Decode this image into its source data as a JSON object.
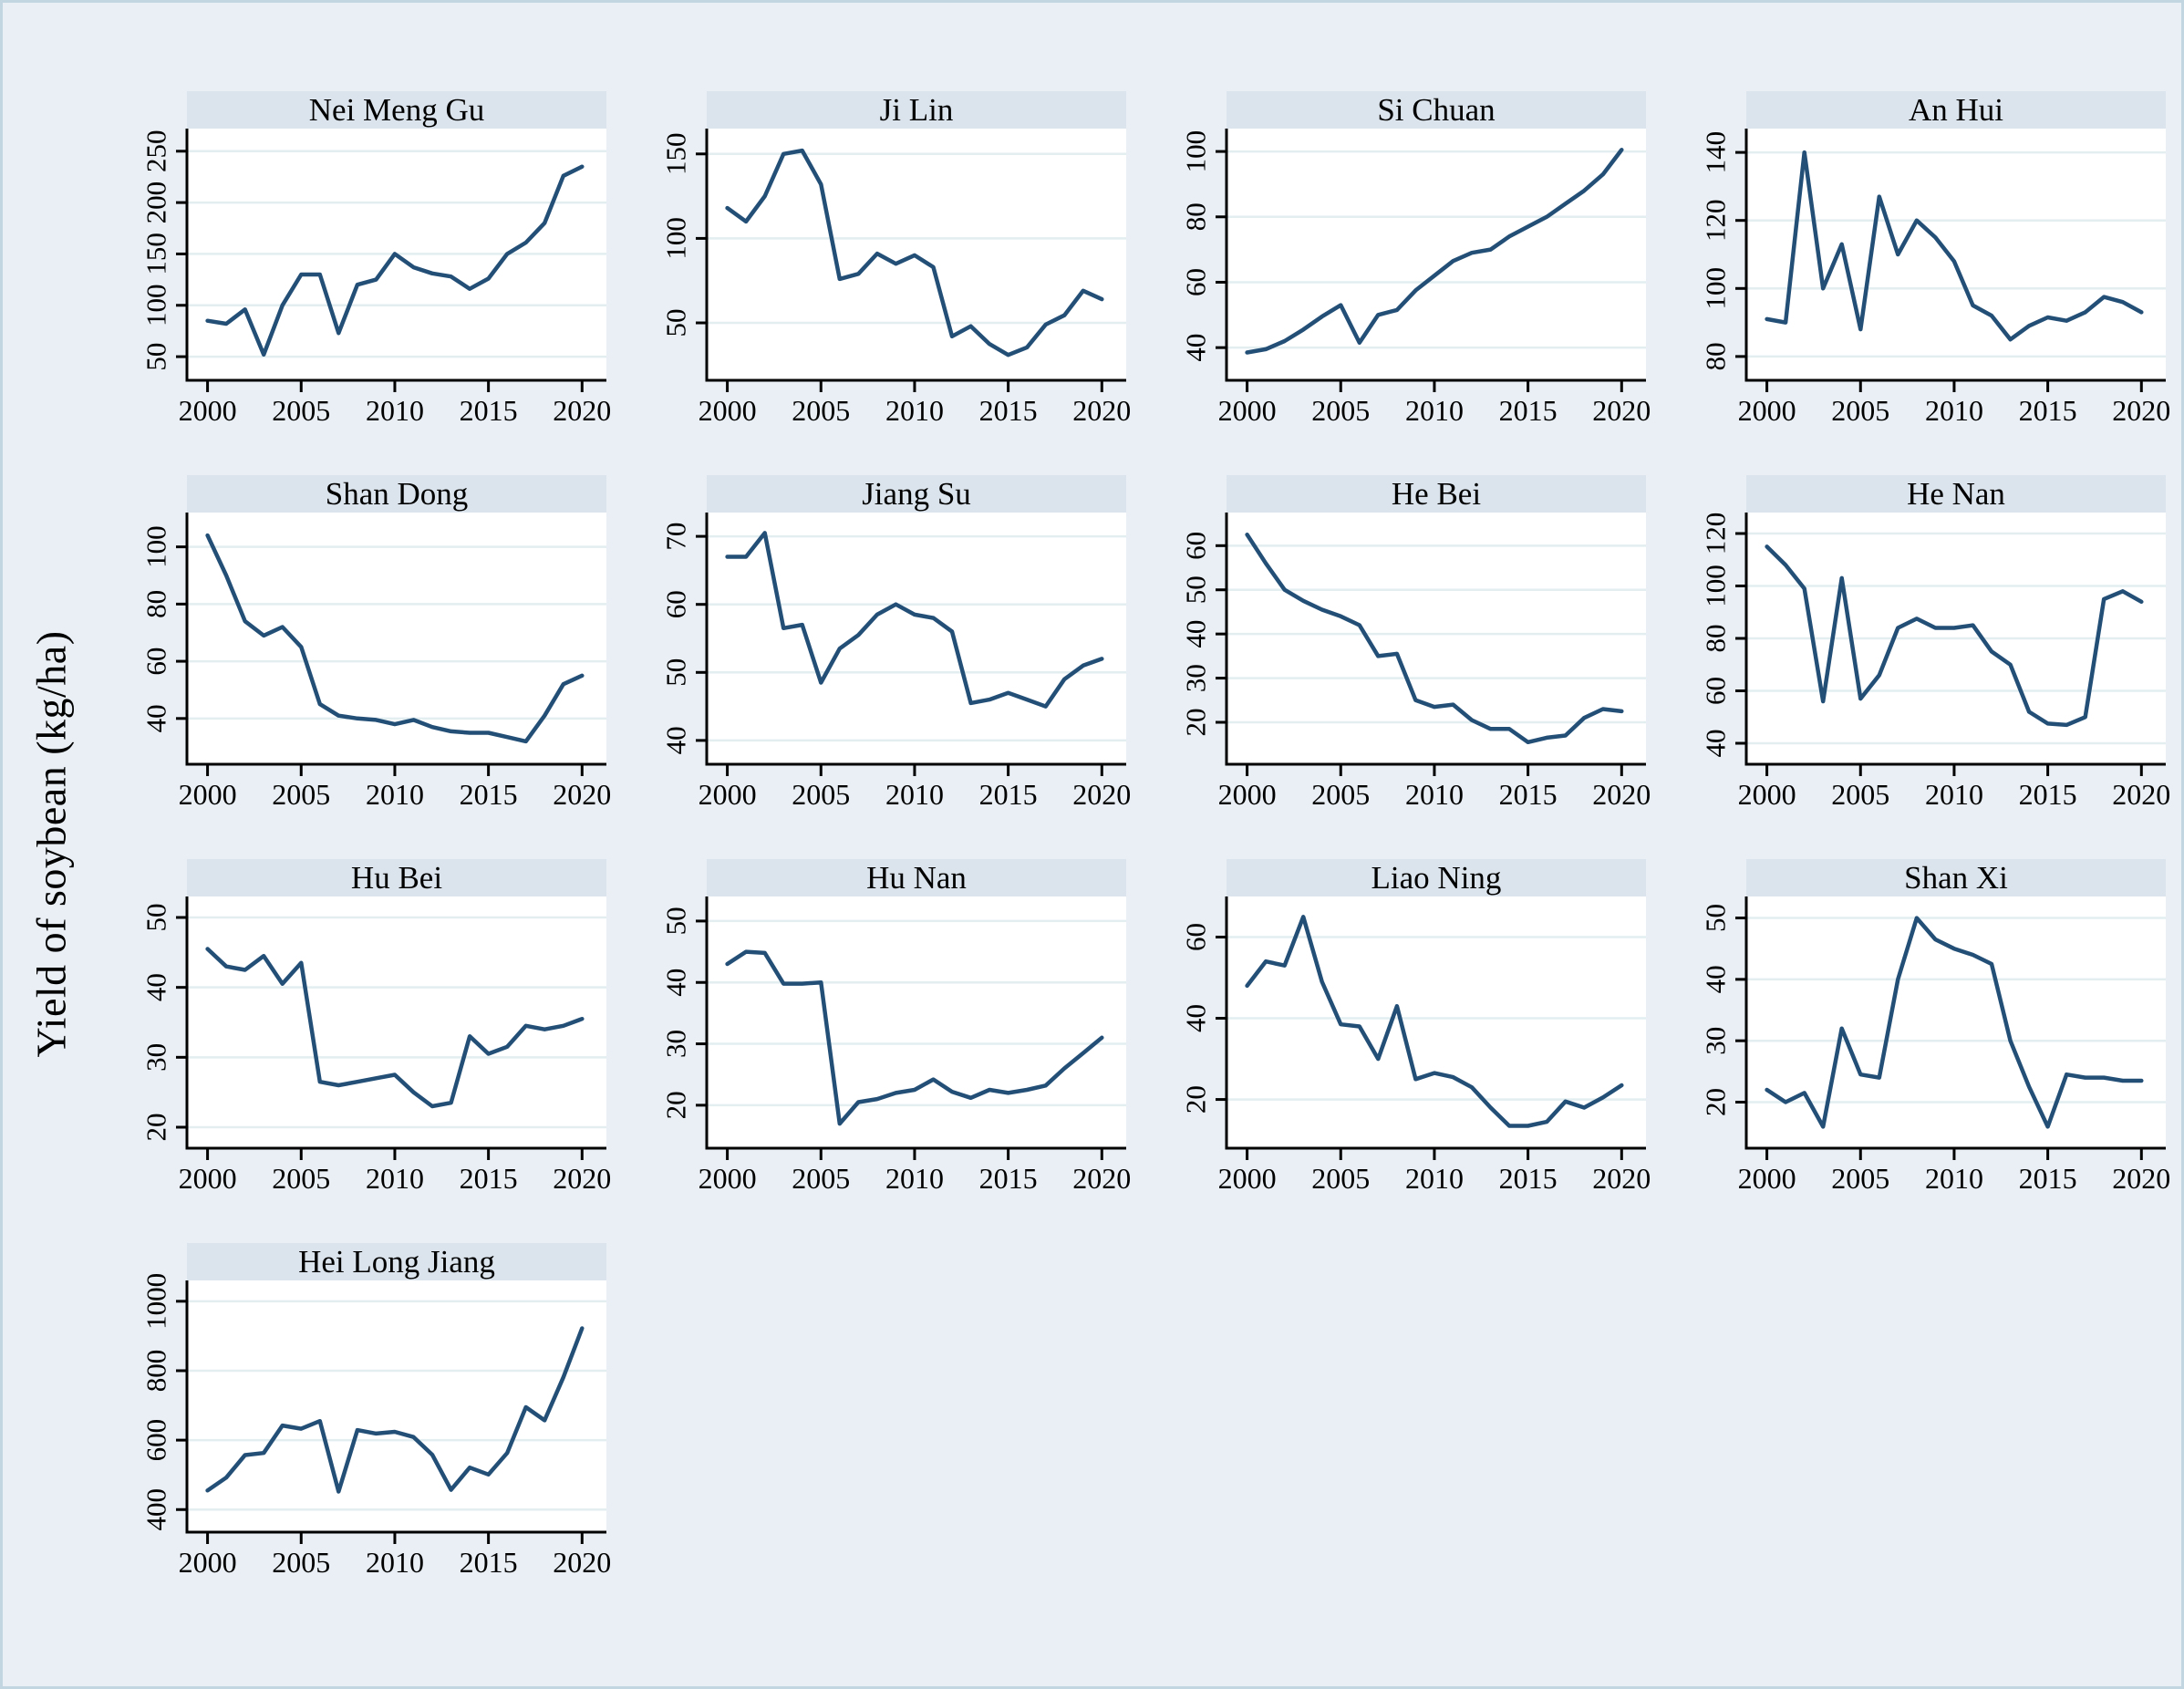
{
  "figure": {
    "ylabel": "Yield of soybean (kg/ha)",
    "colors": {
      "background": "#e9eff4",
      "frame_border": "#c2d6e2",
      "panel_title_bg": "#dbe4ec",
      "plot_bg": "#ffffff",
      "gridline": "#e2eef0",
      "axis": "#000000",
      "line": "#234f77"
    },
    "x": {
      "years": [
        2000,
        2001,
        2002,
        2003,
        2004,
        2005,
        2006,
        2007,
        2008,
        2009,
        2010,
        2011,
        2012,
        2013,
        2014,
        2015,
        2016,
        2017,
        2018,
        2019,
        2020
      ],
      "xticks": [
        2000,
        2005,
        2010,
        2015,
        2020
      ],
      "xlim": [
        1998.9,
        2021.3
      ]
    }
  },
  "chart_data": [
    {
      "type": "line",
      "title": "Nei Meng Gu",
      "yticks": [
        50,
        100,
        150,
        200,
        250
      ],
      "ylim": [
        27,
        272
      ],
      "values": [
        85,
        82,
        96,
        52,
        100,
        130,
        130,
        73,
        120,
        125,
        150,
        137,
        131,
        128,
        116,
        126,
        150,
        161,
        180,
        226,
        235
      ]
    },
    {
      "type": "line",
      "title": "Ji Lin",
      "yticks": [
        50,
        100,
        150
      ],
      "ylim": [
        16,
        165
      ],
      "values": [
        118,
        110,
        125,
        150,
        152,
        132,
        76,
        79,
        91,
        85,
        90,
        83,
        42,
        48,
        37.5,
        31,
        35.5,
        49,
        54.5,
        69,
        64
      ]
    },
    {
      "type": "line",
      "title": "Si Chuan",
      "yticks": [
        40,
        60,
        80,
        100
      ],
      "ylim": [
        30,
        107
      ],
      "values": [
        38.5,
        39.5,
        42,
        45.5,
        49.5,
        53,
        41.5,
        50,
        51.5,
        57.5,
        62,
        66.5,
        69,
        70,
        74,
        77,
        80,
        84,
        88,
        93,
        100.5
      ]
    },
    {
      "type": "line",
      "title": "An Hui",
      "yticks": [
        80,
        100,
        120,
        140
      ],
      "ylim": [
        73,
        147
      ],
      "values": [
        91,
        90,
        140,
        100,
        113,
        88,
        127,
        110,
        120,
        115,
        108,
        95,
        92,
        85,
        89,
        91.5,
        90.5,
        93,
        97.5,
        96,
        93
      ]
    },
    {
      "type": "line",
      "title": "Shan Dong",
      "yticks": [
        40,
        60,
        80,
        100
      ],
      "ylim": [
        24,
        112
      ],
      "values": [
        104,
        90,
        74,
        69,
        72,
        65,
        45,
        41,
        40,
        39.5,
        38,
        39.5,
        37,
        35.5,
        35,
        35,
        33.5,
        32,
        41,
        52,
        55
      ]
    },
    {
      "type": "line",
      "title": "Jiang Su",
      "yticks": [
        40,
        50,
        60,
        70
      ],
      "ylim": [
        36.5,
        73.5
      ],
      "values": [
        67,
        67,
        70.5,
        56.5,
        57,
        48.5,
        53.5,
        55.5,
        58.5,
        60,
        58.5,
        58,
        56,
        45.5,
        46,
        47,
        46,
        45,
        49,
        51,
        52
      ]
    },
    {
      "type": "line",
      "title": "He Bei",
      "yticks": [
        20,
        30,
        40,
        50,
        60
      ],
      "ylim": [
        10.5,
        67.5
      ],
      "values": [
        62.5,
        56,
        50,
        47.5,
        45.5,
        44,
        42,
        35,
        35.5,
        25,
        23.5,
        24,
        20.5,
        18.5,
        18.5,
        15.5,
        16.5,
        17,
        21,
        23,
        22.5
      ]
    },
    {
      "type": "line",
      "title": "He Nan",
      "yticks": [
        40,
        60,
        80,
        100,
        120
      ],
      "ylim": [
        32,
        128
      ],
      "values": [
        115,
        108,
        99,
        56,
        103,
        57,
        66,
        84,
        87.5,
        84,
        84,
        85,
        75,
        70,
        52,
        47.5,
        47,
        50,
        95,
        98,
        94
      ]
    },
    {
      "type": "line",
      "title": "Hu Bei",
      "yticks": [
        20,
        30,
        40,
        50
      ],
      "ylim": [
        17,
        53
      ],
      "values": [
        45.5,
        43,
        42.5,
        44.5,
        40.5,
        43.5,
        26.5,
        26,
        26.5,
        27,
        27.5,
        25,
        23,
        23.5,
        33,
        30.5,
        31.5,
        34.5,
        34,
        34.5,
        35.5
      ]
    },
    {
      "type": "line",
      "title": "Hu Nan",
      "yticks": [
        20,
        30,
        40,
        50
      ],
      "ylim": [
        13,
        54
      ],
      "values": [
        43,
        45,
        44.8,
        39.8,
        39.8,
        40,
        17,
        20.5,
        21,
        22,
        22.5,
        24.2,
        22.2,
        21.2,
        22.5,
        22,
        22.5,
        23.2,
        26,
        28.5,
        31
      ]
    },
    {
      "type": "line",
      "title": "Liao Ning",
      "yticks": [
        20,
        40,
        60
      ],
      "ylim": [
        8,
        70
      ],
      "values": [
        48,
        54,
        53,
        65,
        49,
        38.5,
        38,
        30,
        43,
        25,
        26.5,
        25.5,
        23,
        18,
        13.5,
        13.5,
        14.5,
        19.5,
        18,
        20.5,
        23.5
      ]
    },
    {
      "type": "line",
      "title": "Shan Xi",
      "yticks": [
        20,
        30,
        40,
        50
      ],
      "ylim": [
        12.5,
        53.5
      ],
      "values": [
        22,
        20,
        21.5,
        16,
        32,
        24.5,
        24,
        40,
        50,
        46.5,
        45,
        44,
        42.5,
        30,
        22.5,
        16,
        24.5,
        24,
        24,
        23.5,
        23.5
      ]
    },
    {
      "type": "line",
      "title": "Hei Long Jiang",
      "yticks": [
        400,
        600,
        800,
        1000
      ],
      "ylim": [
        335,
        1060
      ],
      "values": [
        455,
        492,
        557,
        563,
        642,
        633,
        655,
        452,
        629,
        619,
        624,
        609,
        558,
        457,
        521,
        501,
        563,
        695,
        657,
        781,
        922
      ]
    }
  ]
}
